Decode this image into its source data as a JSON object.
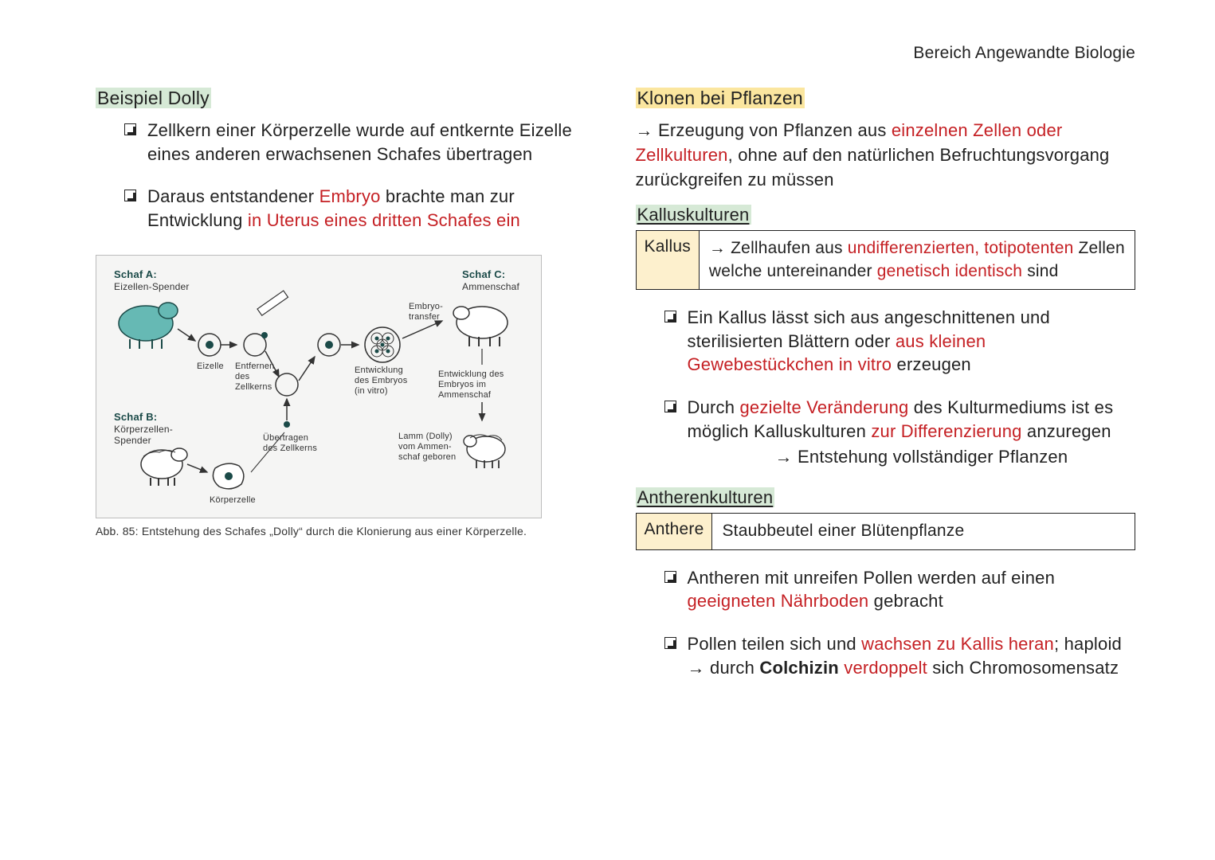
{
  "header": {
    "right": "Bereich Angewandte Biologie"
  },
  "left": {
    "title": "Beispiel Dolly",
    "bullets": [
      {
        "parts": [
          {
            "t": "Zellkern einer Körperzelle wurde auf entkernte Eizelle eines anderen erwachsenen Schafes übertragen",
            "red": false
          }
        ]
      },
      {
        "parts": [
          {
            "t": "Daraus entstandener ",
            "red": false
          },
          {
            "t": "Embryo",
            "red": true
          },
          {
            "t": " brachte man zur Entwicklung ",
            "red": false
          },
          {
            "t": "in Uterus eines dritten Schafes ein",
            "red": true
          }
        ]
      }
    ],
    "diagram": {
      "schafA_title": "Schaf A:",
      "schafA_sub": "Eizellen-Spender",
      "schafB_title": "Schaf B:",
      "schafB_sub": "Körperzellen-Spender",
      "schafC_title": "Schaf C:",
      "schafC_sub": "Ammenschaf",
      "eizelle": "Eizelle",
      "entfernen1": "Entfernen",
      "entfernen2": "des",
      "entfernen3": "Zellkerns",
      "uebertragen1": "Übertragen",
      "uebertragen2": "des Zellkerns",
      "koerperzelle": "Körperzelle",
      "embryotransfer": "Embryo-\ntransfer",
      "entwicklung1": "Entwicklung",
      "entwicklung2": "des Embryos",
      "entwicklung3": "(in vitro)",
      "entwicklungAm1": "Entwicklung des",
      "entwicklungAm2": "Embryos im",
      "entwicklungAm3": "Ammenschaf",
      "lamm1": "Lamm (Dolly)",
      "lamm2": "vom Ammen-",
      "lamm3": "schaf geboren",
      "colors": {
        "teal": "#66b9b4",
        "dark": "#1b4a48",
        "line": "#333333",
        "bg": "#f5f5f4"
      }
    },
    "caption": "Abb. 85: Entstehung des Schafes „Dolly“ durch die Klonierung aus einer Körperzelle."
  },
  "right": {
    "title": "Klonen bei Pflanzen",
    "intro": {
      "arrow": "→ ",
      "parts": [
        {
          "t": "Erzeugung von Pflanzen aus ",
          "red": false
        },
        {
          "t": "einzelnen Zellen oder Zellkulturen",
          "red": true
        },
        {
          "t": ", ohne auf den natürlichen Befruchtungsvorgang zurückgreifen zu müssen",
          "red": false
        }
      ]
    },
    "kallus_heading": "Kalluskulturen",
    "kallus_def_label": "Kallus",
    "kallus_def": {
      "arrow": "→ ",
      "parts": [
        {
          "t": "Zellhaufen aus ",
          "red": false
        },
        {
          "t": "undifferenzierten, totipotenten",
          "red": true
        },
        {
          "t": " Zellen welche untereinander ",
          "red": false
        },
        {
          "t": "genetisch identisch",
          "red": true
        },
        {
          "t": " sind",
          "red": false
        }
      ]
    },
    "kallus_bullets": [
      {
        "parts": [
          {
            "t": "Ein Kallus lässt sich aus angeschnittenen und sterilisierten Blättern oder ",
            "red": false
          },
          {
            "t": "aus kleinen Gewebestückchen in vitro",
            "red": true
          },
          {
            "t": " erzeugen",
            "red": false
          }
        ]
      },
      {
        "parts": [
          {
            "t": "Durch ",
            "red": false
          },
          {
            "t": "gezielte Veränderung",
            "red": true
          },
          {
            "t": " des Kulturmediums ist es möglich Kalluskulturen ",
            "red": false
          },
          {
            "t": "zur Differenzierung",
            "red": true
          },
          {
            "t": " anzuregen",
            "red": false
          }
        ],
        "sub": "→ Entstehung vollständiger Pflanzen"
      }
    ],
    "anthere_heading": "Antherenkulturen",
    "anthere_def_label": "Anthere",
    "anthere_def": "Staubbeutel einer Blütenpflanze",
    "anthere_bullets": [
      {
        "parts": [
          {
            "t": "Antheren mit unreifen Pollen werden auf einen ",
            "red": false
          },
          {
            "t": "geeigneten Nährboden",
            "red": true
          },
          {
            "t": " gebracht",
            "red": false
          }
        ]
      },
      {
        "parts": [
          {
            "t": "Pollen teilen sich und ",
            "red": false
          },
          {
            "t": "wachsen zu Kallis heran",
            "red": true
          },
          {
            "t": "; haploid → durch ",
            "red": false
          },
          {
            "t": "Colchizin",
            "red": false,
            "bold": true
          },
          {
            "t": " ",
            "red": false
          },
          {
            "t": "verdoppelt",
            "red": true
          },
          {
            "t": " sich Chromosomensatz",
            "red": false
          }
        ]
      }
    ]
  }
}
